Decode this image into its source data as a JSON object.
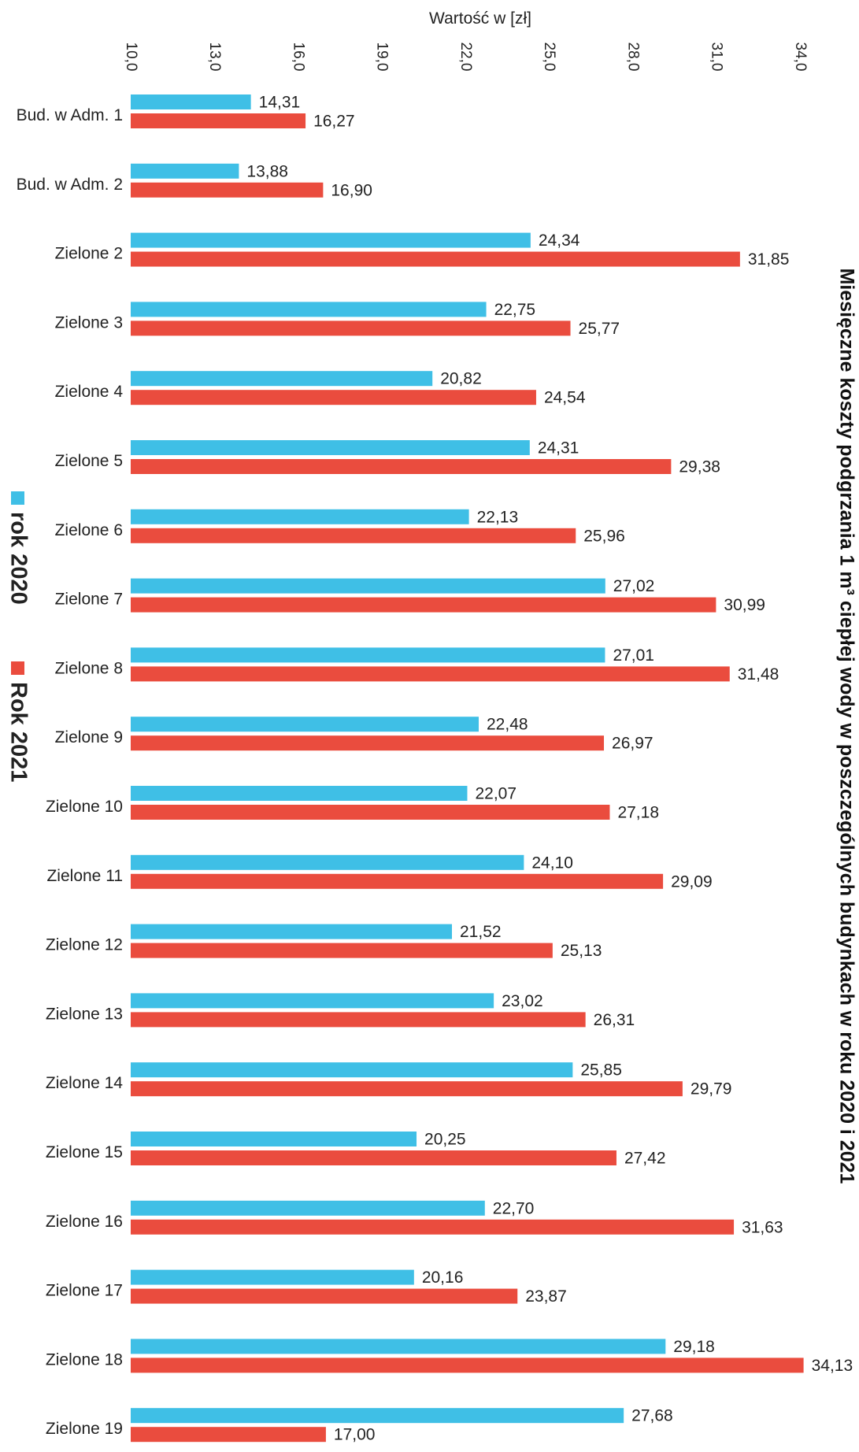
{
  "chart_data": {
    "type": "bar",
    "orientation": "horizontal",
    "title": "Miesięczne koszty podgrzania 1 m³ ciepłej wody w poszczególnych budynkach w roku 2020 i 2021",
    "xlabel": "Wartość w [zł]",
    "xlim": [
      10.0,
      34.0
    ],
    "ticks": [
      "10,0",
      "13,0",
      "16,0",
      "19,0",
      "22,0",
      "25,0",
      "28,0",
      "31,0",
      "34,0"
    ],
    "tick_values": [
      10,
      13,
      16,
      19,
      22,
      25,
      28,
      31,
      34
    ],
    "grid": false,
    "legend_position": "left",
    "categories": [
      "Bud. w Adm. 1",
      "Bud. w Adm. 2",
      "Zielone 2",
      "Zielone 3",
      "Zielone 4",
      "Zielone 5",
      "Zielone 6",
      "Zielone 7",
      "Zielone 8",
      "Zielone 9",
      "Zielone 10",
      "Zielone 11",
      "Zielone 12",
      "Zielone 13",
      "Zielone 14",
      "Zielone 15",
      "Zielone 16",
      "Zielone 17",
      "Zielone 18",
      "Zielone 19"
    ],
    "series": [
      {
        "name": "rok 2020",
        "color": "#3fbfe6",
        "values": [
          14.31,
          13.88,
          24.34,
          22.75,
          20.82,
          24.31,
          22.13,
          27.02,
          27.01,
          22.48,
          22.07,
          24.1,
          21.52,
          23.02,
          25.85,
          20.25,
          22.7,
          20.16,
          29.18,
          27.68
        ],
        "labels": [
          "14,31",
          "13,88",
          "24,34",
          "22,75",
          "20,82",
          "24,31",
          "22,13",
          "27,02",
          "27,01",
          "22,48",
          "22,07",
          "24,10",
          "21,52",
          "23,02",
          "25,85",
          "20,25",
          "22,70",
          "20,16",
          "29,18",
          "27,68"
        ]
      },
      {
        "name": "Rok 2021",
        "color": "#ea4c3e",
        "values": [
          16.27,
          16.9,
          31.85,
          25.77,
          24.54,
          29.38,
          25.96,
          30.99,
          31.48,
          26.97,
          27.18,
          29.09,
          25.13,
          26.31,
          29.79,
          27.42,
          31.63,
          23.87,
          34.13,
          17.0
        ],
        "labels": [
          "16,27",
          "16,90",
          "31,85",
          "25,77",
          "24,54",
          "29,38",
          "25,96",
          "30,99",
          "31,48",
          "26,97",
          "27,18",
          "29,09",
          "25,13",
          "26,31",
          "29,79",
          "27,42",
          "31,63",
          "23,87",
          "34,13",
          "17,00"
        ]
      }
    ]
  }
}
